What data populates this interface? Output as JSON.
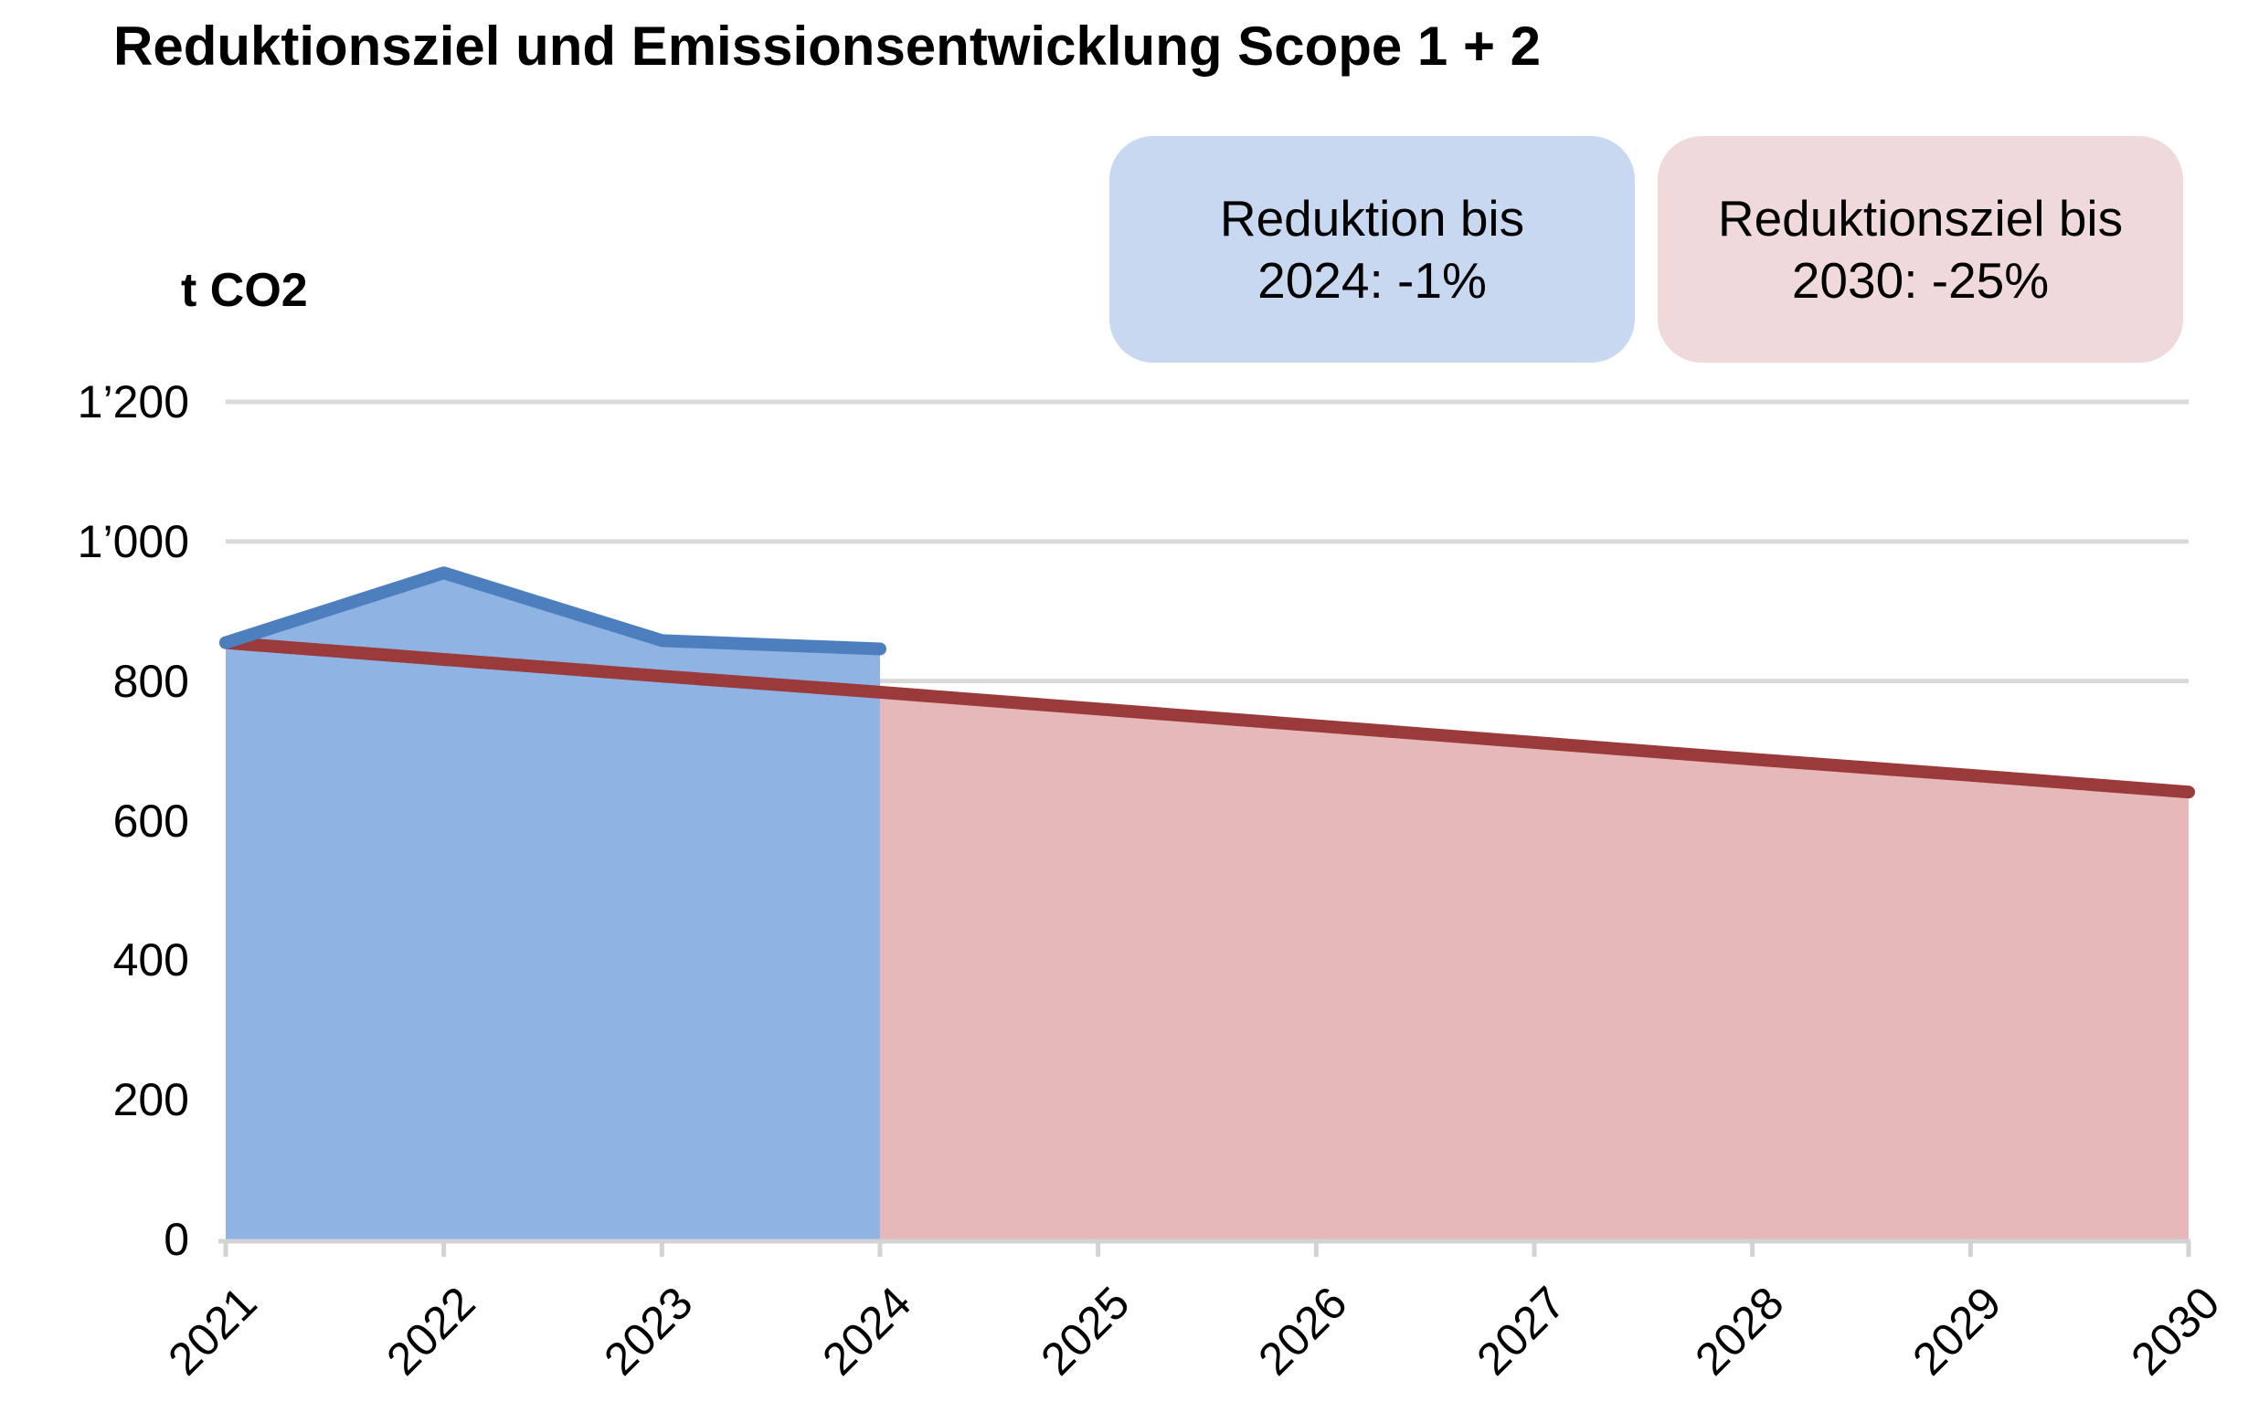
{
  "header": {
    "title": "Reduktionsziel und Emissionsentwicklung Scope 1 + 2"
  },
  "legend": {
    "badges": [
      {
        "id": "reduction-2024",
        "lines": [
          "Reduktion bis",
          "2024: -1%"
        ],
        "bg": "#c7d8f0"
      },
      {
        "id": "target-2030",
        "lines": [
          "Reduktionsziel bis",
          "2030: -25%"
        ],
        "bg": "#f0d9da"
      }
    ]
  },
  "chart_data": {
    "type": "area",
    "title": "Reduktionsziel und Emissionsentwicklung Scope 1 + 2",
    "ylabel": "t CO2",
    "xlabel": "",
    "ylim": [
      0,
      1200
    ],
    "ytick_step": 200,
    "ytick_labels": [
      "0",
      "200",
      "400",
      "600",
      "800",
      "1’000",
      "1’200"
    ],
    "categories": [
      "2021",
      "2022",
      "2023",
      "2024",
      "2025",
      "2026",
      "2027",
      "2028",
      "2029",
      "2030"
    ],
    "grid": true,
    "legend_position": "top-right",
    "colors": {
      "grid": "#d9d9d9",
      "axis": "#d3d3d3",
      "actual_line": "#4d7ebd",
      "actual_fill": "#8fb3e3",
      "target_line": "#9a3a3b",
      "target_fill": "#e6b8ba"
    },
    "series": [
      {
        "id": "target",
        "name": "Reduktionsziel bis 2030: -25%",
        "line_color": "#9a3a3b",
        "fill_color": "#e6b8ba",
        "values": [
          855,
          831,
          807,
          784,
          760,
          736,
          712,
          688,
          665,
          641
        ]
      },
      {
        "id": "actual",
        "name": "Reduktion bis 2024: -1%",
        "line_color": "#4d7ebd",
        "fill_color": "#8fb3e3",
        "values": [
          855,
          955,
          858,
          846,
          null,
          null,
          null,
          null,
          null,
          null
        ]
      }
    ]
  }
}
